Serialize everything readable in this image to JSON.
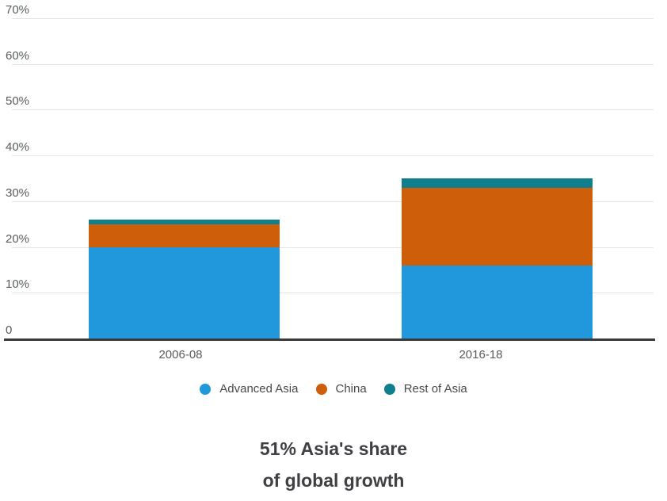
{
  "chart_data": {
    "type": "bar",
    "stacked": true,
    "categories": [
      "2006-08",
      "2016-18"
    ],
    "series": [
      {
        "name": "Advanced Asia",
        "color": "#2098db",
        "values": [
          20,
          16
        ]
      },
      {
        "name": "China",
        "color": "#cf5e0b",
        "values": [
          5,
          17
        ]
      },
      {
        "name": "Rest of Asia",
        "color": "#0f7f8d",
        "values": [
          1,
          2
        ]
      }
    ],
    "totals": [
      26,
      35
    ],
    "ylim": [
      0,
      70
    ],
    "yticks": [
      {
        "value": 0,
        "label": "0"
      },
      {
        "value": 10,
        "label": "10%"
      },
      {
        "value": 20,
        "label": "20%"
      },
      {
        "value": 30,
        "label": "30%"
      },
      {
        "value": 40,
        "label": "40%"
      },
      {
        "value": 50,
        "label": "50%"
      },
      {
        "value": 60,
        "label": "60%"
      },
      {
        "value": 70,
        "label": "70%"
      }
    ],
    "grid": true,
    "legend_position": "bottom"
  },
  "caption": {
    "line1": "51% Asia's share",
    "line2": "of global growth"
  },
  "colors": {
    "gridline": "#e4e4e4",
    "axis": "#3a3a3a",
    "tick_text": "#585c5f",
    "legend_text": "#46494c",
    "caption_text": "#3e4043"
  }
}
